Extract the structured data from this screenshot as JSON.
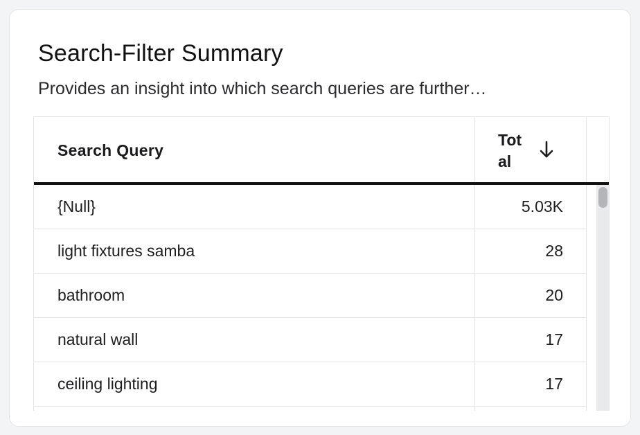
{
  "card": {
    "title": "Search-Filter Summary",
    "subtitle": "Provides an insight into which search queries are further…"
  },
  "table": {
    "columns": {
      "query": "Search Query",
      "total": "Total"
    },
    "sort": {
      "column": "total",
      "direction": "descending",
      "icon": "arrow-down-icon"
    },
    "rows": [
      {
        "query": "{Null}",
        "total": "5.03K"
      },
      {
        "query": "light fixtures samba",
        "total": "28"
      },
      {
        "query": "bathroom",
        "total": "20"
      },
      {
        "query": "natural wall",
        "total": "17"
      },
      {
        "query": "ceiling lighting",
        "total": "17"
      },
      {
        "query": "",
        "total": ""
      }
    ]
  },
  "colors": {
    "header_rule": "#111111",
    "grid_line": "#e1e3e6",
    "scroll_thumb": "#b3b5b9",
    "page_bg": "#f3f4f6"
  }
}
